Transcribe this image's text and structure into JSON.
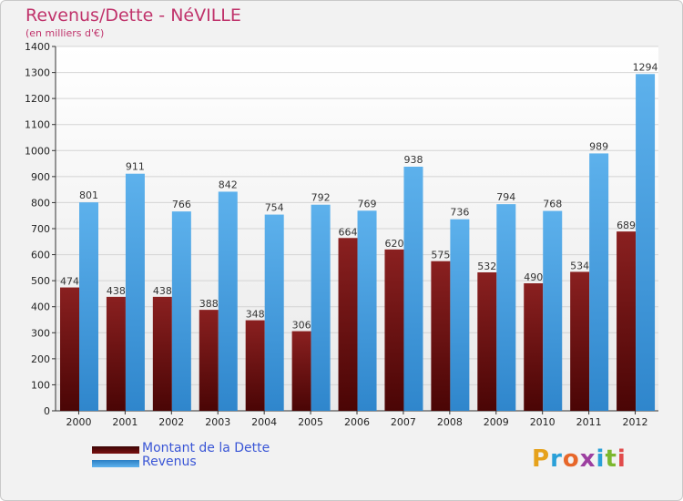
{
  "header": {
    "title": "Revenus/Dette - NéVILLE",
    "subtitle": "(en milliers d'€)"
  },
  "legend": [
    {
      "label": "Montant de la Dette",
      "color": "#7a1111"
    },
    {
      "label": "Revenus",
      "color": "#4aa3e6"
    }
  ],
  "logo": {
    "text": "Proxiti",
    "colors": [
      "#e6a21c",
      "#2aa0d8",
      "#e7672a",
      "#9c3fa0",
      "#2aa0d8",
      "#7cb82f",
      "#e14b4b"
    ]
  },
  "chart_data": {
    "type": "bar",
    "title": "Revenus/Dette - NéVILLE",
    "subtitle": "(en milliers d'€)",
    "categories": [
      "2000",
      "2001",
      "2002",
      "2003",
      "2004",
      "2005",
      "2006",
      "2007",
      "2008",
      "2009",
      "2010",
      "2011",
      "2012"
    ],
    "series": [
      {
        "name": "Montant de la Dette",
        "color": "#7a1111",
        "values": [
          474,
          438,
          438,
          388,
          348,
          306,
          664,
          620,
          575,
          532,
          490,
          534,
          689
        ]
      },
      {
        "name": "Revenus",
        "color": "#4aa3e6",
        "values": [
          801,
          911,
          766,
          842,
          754,
          792,
          769,
          938,
          736,
          794,
          768,
          989,
          1294
        ]
      }
    ],
    "ylim": [
      0,
      1400
    ],
    "yticks": [
      0,
      100,
      200,
      300,
      400,
      500,
      600,
      700,
      800,
      900,
      1000,
      1100,
      1200,
      1300,
      1400
    ],
    "grid": true,
    "legend_position": "bottom-left"
  }
}
